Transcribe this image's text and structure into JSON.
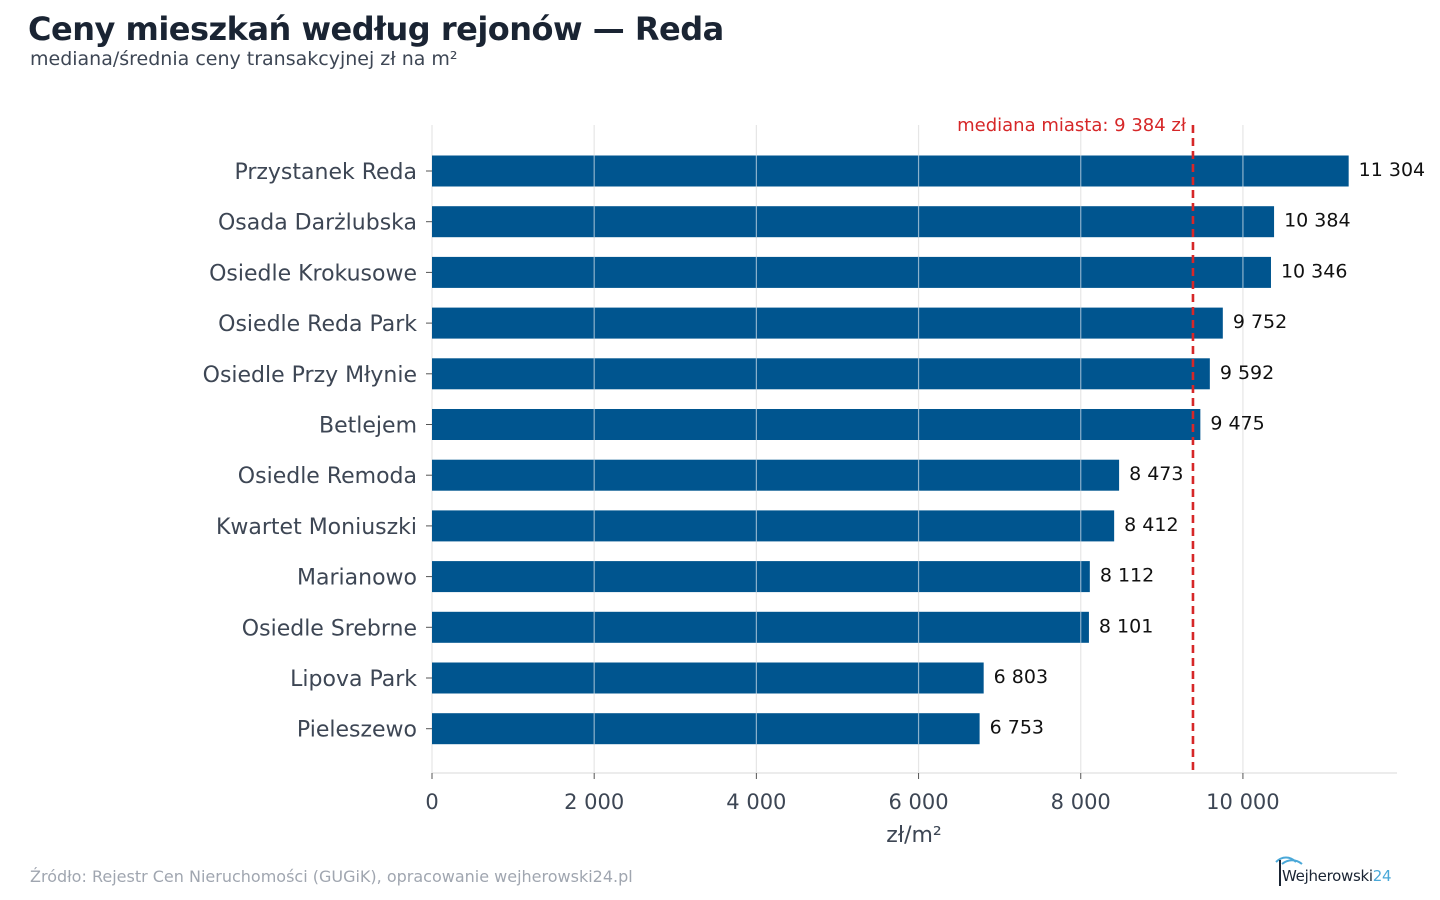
{
  "header": {
    "title": "Ceny mieszkań według rejonów — Reda",
    "subtitle": "mediana/średnia ceny transakcyjnej zł na m²"
  },
  "footer": {
    "source": "Źródło: Rejestr Cen Nieruchomości (GUGiK), opracowanie wejherowski24.pl",
    "logo_text": "Wejherowski",
    "logo_number": "24"
  },
  "colors": {
    "bar": "#00558f",
    "median_line": "#d62728",
    "grid": "#e6e6e6",
    "axis_text": "#3d4654",
    "value_text": "#111111"
  },
  "chart_data": {
    "type": "bar",
    "orientation": "horizontal",
    "categories": [
      "Przystanek Reda",
      "Osada Darżlubska",
      "Osiedle Krokusowe",
      "Osiedle Reda Park",
      "Osiedle Przy Młynie",
      "Betlejem",
      "Osiedle Remoda",
      "Kwartet Moniuszki",
      "Marianowo",
      "Osiedle Srebrne",
      "Lipova Park",
      "Pieleszewo"
    ],
    "values": [
      11304,
      10384,
      10346,
      9752,
      9592,
      9475,
      8473,
      8412,
      8112,
      8101,
      6803,
      6753
    ],
    "value_labels": [
      "11 304",
      "10 384",
      "10 346",
      "9 752",
      "9 592",
      "9 475",
      "8 473",
      "8 412",
      "8 112",
      "8 101",
      "6 803",
      "6 753"
    ],
    "xlabel": "zł/m²",
    "xlim": [
      0,
      11900
    ],
    "xticks": [
      0,
      2000,
      4000,
      6000,
      8000,
      10000
    ],
    "xtick_labels": [
      "0",
      "2 000",
      "4 000",
      "6 000",
      "8 000",
      "10 000"
    ],
    "grid": true,
    "reference_line": {
      "value": 9384,
      "label": "mediana miasta: 9 384 zł"
    }
  }
}
